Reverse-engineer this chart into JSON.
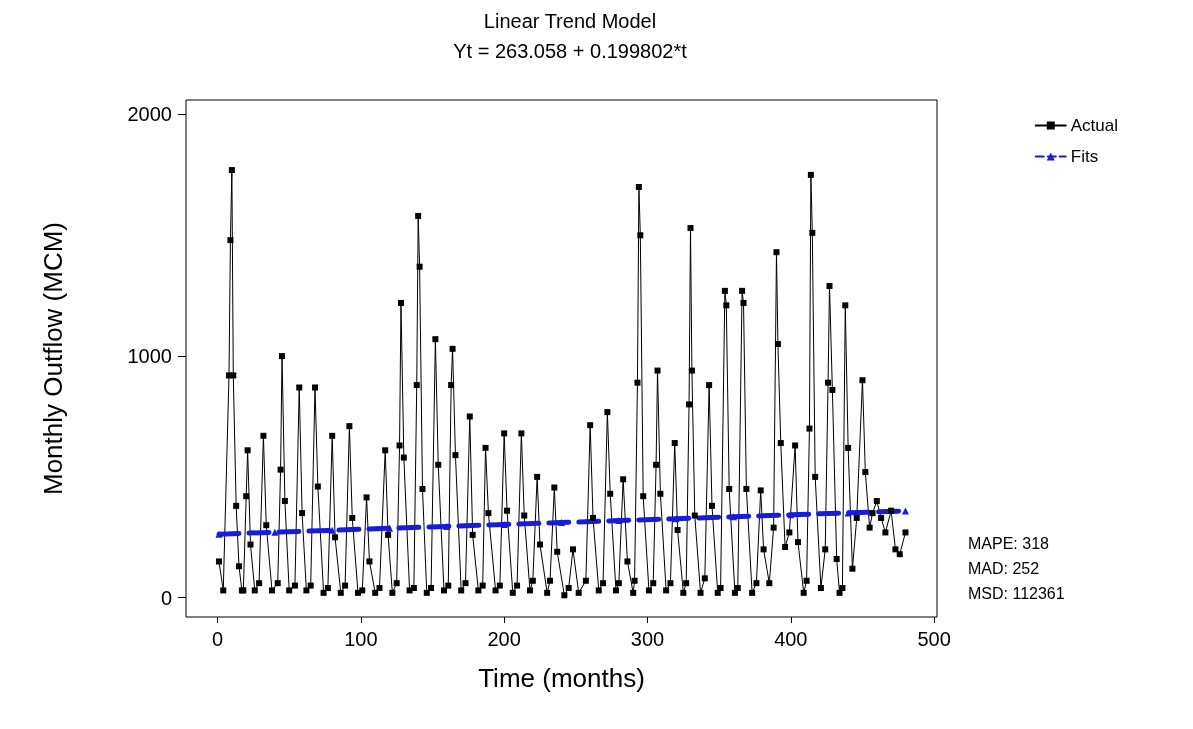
{
  "chart_data": {
    "type": "line",
    "title": "Linear Trend Model",
    "subtitle": "Yt = 263.058 + 0.199802*t",
    "xlabel": "Time (months)",
    "ylabel": "Monthly Outflow (MCM)",
    "xlim": [
      -22,
      502
    ],
    "xticks": [
      0,
      100,
      200,
      300,
      400,
      500
    ],
    "ylim": [
      -80,
      2060
    ],
    "yticks": [
      0,
      1000,
      2000
    ],
    "grid": false,
    "legend": "top right",
    "annotations": [
      "MAPE: 318",
      "MAD: 252",
      "MSD: 112361"
    ],
    "series": [
      {
        "name": "Actual",
        "color": "#000000",
        "marker": "square",
        "line_style": "solid",
        "x": [
          1,
          4,
          8,
          9,
          10,
          11,
          13,
          15,
          17,
          18,
          20,
          21,
          23,
          26,
          29,
          32,
          34,
          38,
          42,
          44,
          45,
          47,
          50,
          54,
          57,
          59,
          62,
          65,
          68,
          70,
          74,
          77,
          80,
          82,
          86,
          89,
          92,
          94,
          98,
          101,
          104,
          106,
          110,
          113,
          117,
          119,
          122,
          125,
          127,
          128,
          130,
          134,
          137,
          139,
          140,
          141,
          143,
          146,
          149,
          152,
          154,
          158,
          161,
          163,
          164,
          166,
          170,
          173,
          176,
          178,
          182,
          185,
          187,
          189,
          194,
          197,
          200,
          202,
          206,
          209,
          212,
          214,
          218,
          220,
          223,
          225,
          230,
          232,
          235,
          237,
          242,
          245,
          248,
          252,
          257,
          260,
          262,
          266,
          269,
          272,
          274,
          278,
          280,
          283,
          286,
          290,
          291,
          293,
          294,
          295,
          297,
          301,
          304,
          306,
          307,
          309,
          313,
          316,
          319,
          321,
          325,
          327,
          329,
          330,
          331,
          333,
          337,
          340,
          343,
          345,
          349,
          351,
          354,
          355,
          357,
          361,
          363,
          366,
          367,
          369,
          373,
          376,
          379,
          381,
          385,
          388,
          390,
          391,
          393,
          396,
          399,
          403,
          405,
          409,
          411,
          413,
          414,
          415,
          417,
          421,
          424,
          426,
          427,
          429,
          432,
          434,
          436,
          438,
          440,
          443,
          446,
          450,
          452,
          455,
          457,
          460,
          463,
          466,
          470,
          473,
          476,
          480
        ],
        "values": [
          150,
          30,
          920,
          1480,
          1770,
          920,
          380,
          130,
          30,
          30,
          420,
          610,
          220,
          30,
          60,
          670,
          300,
          30,
          60,
          530,
          1000,
          400,
          30,
          50,
          870,
          350,
          30,
          50,
          870,
          460,
          20,
          40,
          670,
          250,
          20,
          50,
          710,
          330,
          20,
          30,
          415,
          150,
          20,
          40,
          610,
          260,
          20,
          60,
          630,
          1220,
          580,
          30,
          40,
          880,
          1580,
          1370,
          450,
          20,
          40,
          1070,
          550,
          30,
          50,
          880,
          1030,
          590,
          30,
          60,
          750,
          260,
          30,
          50,
          620,
          350,
          30,
          50,
          680,
          360,
          20,
          50,
          680,
          340,
          30,
          70,
          500,
          220,
          20,
          70,
          456,
          190,
          10,
          40,
          200,
          20,
          70,
          714,
          330,
          30,
          60,
          768,
          430,
          30,
          60,
          490,
          150,
          20,
          70,
          890,
          1700,
          1500,
          420,
          30,
          60,
          550,
          940,
          430,
          30,
          60,
          640,
          280,
          20,
          60,
          800,
          1530,
          940,
          340,
          20,
          80,
          880,
          380,
          20,
          40,
          1270,
          1210,
          450,
          20,
          40,
          1270,
          1220,
          450,
          20,
          60,
          444,
          200,
          60,
          290,
          1430,
          1050,
          640,
          210,
          270,
          630,
          230,
          20,
          70,
          700,
          1750,
          1510,
          500,
          40,
          200,
          890,
          1290,
          860,
          160,
          20,
          40,
          1210,
          620,
          120,
          330,
          900,
          520,
          290,
          350,
          400,
          330,
          270,
          360,
          200,
          180,
          270
        ]
      },
      {
        "name": "Fits",
        "color": "#1a1adb",
        "marker": "triangle",
        "line_style": "dashed",
        "x": [
          1,
          40,
          80,
          120,
          160,
          200,
          240,
          280,
          320,
          360,
          400,
          440,
          480
        ],
        "values": [
          263,
          271,
          279,
          287,
          295,
          303,
          311,
          319,
          327,
          335,
          343,
          351,
          359
        ]
      }
    ]
  }
}
